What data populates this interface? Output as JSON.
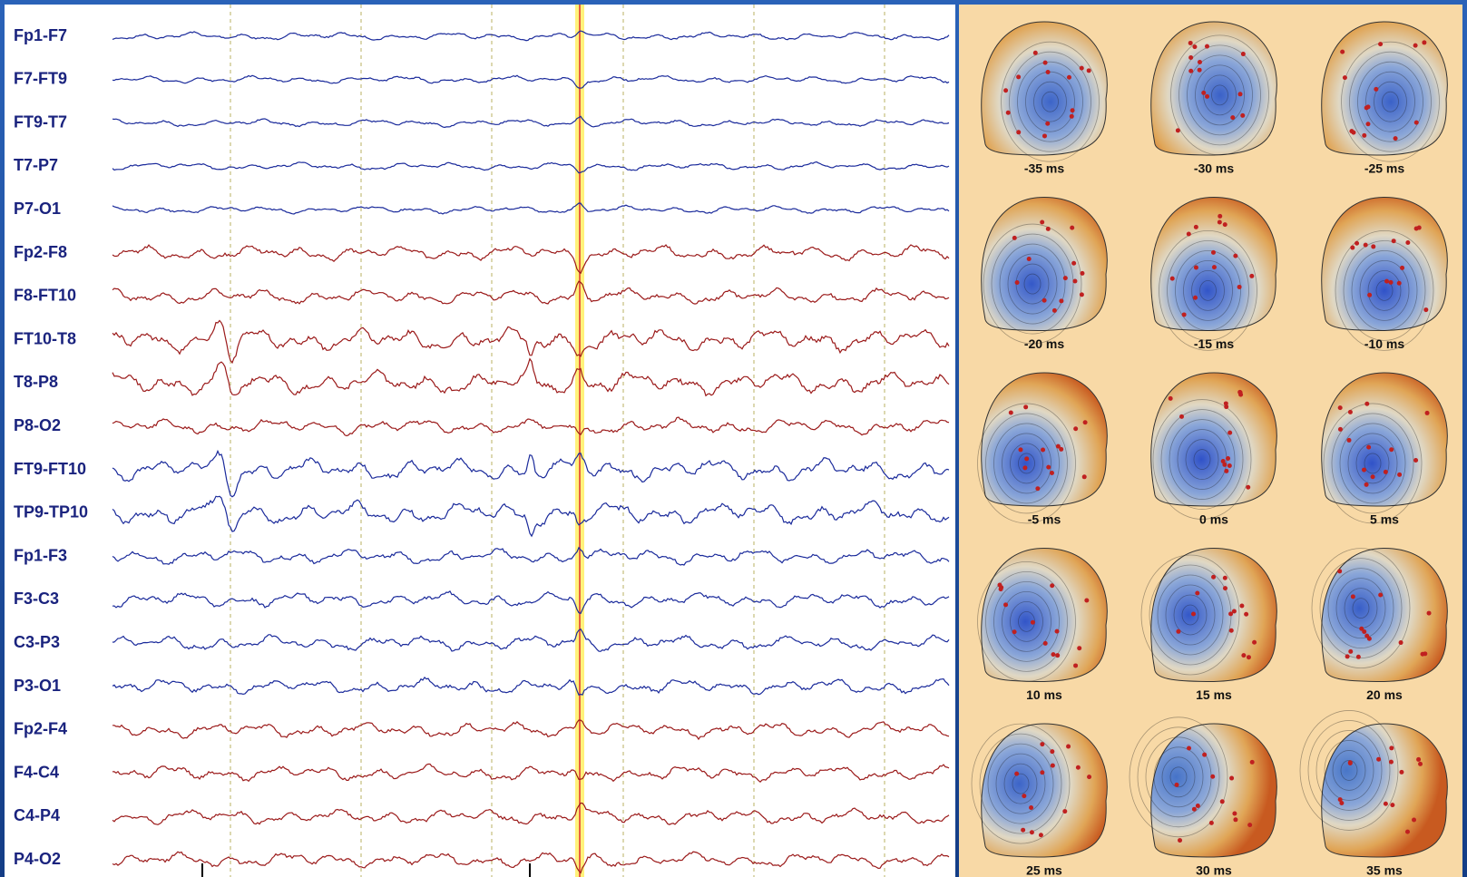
{
  "channels": [
    "Fp1-F7",
    "F7-FT9",
    "FT9-T7",
    "T7-P7",
    "P7-O1",
    "Fp2-F8",
    "F8-FT10",
    "FT10-T8",
    "T8-P8",
    "P8-O2",
    "FT9-FT10",
    "TP9-TP10",
    "Fp1-F3",
    "F3-C3",
    "C3-P3",
    "P3-O1",
    "Fp2-F4",
    "F4-C4",
    "C4-P4",
    "P4-O2"
  ],
  "maps": [
    "-35 ms",
    "-30 ms",
    "-25 ms",
    "-20 ms",
    "-15 ms",
    "-10 ms",
    "-5 ms",
    "0 ms",
    "5 ms",
    "10 ms",
    "15 ms",
    "20 ms",
    "25 ms",
    "30 ms",
    "35 ms"
  ]
}
